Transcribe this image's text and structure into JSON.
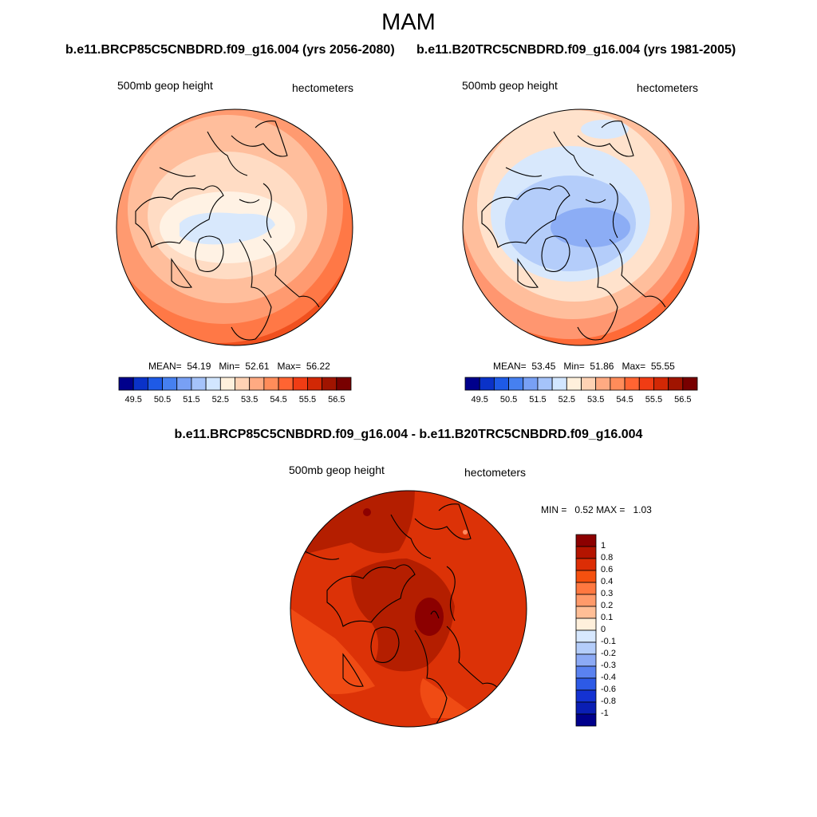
{
  "figure": {
    "season_title": "MAM",
    "panel_left": {
      "title": "b.e11.BRCP85C5CNBDRD.f09_g16.004 (yrs 2056-2080)",
      "variable": "500mb geop height",
      "units": "hectometers",
      "mean_label": "MEAN=",
      "mean": "54.19",
      "min_label": "Min=",
      "min": "52.61",
      "max_label": "Max=",
      "max": "56.22"
    },
    "panel_right": {
      "title": "b.e11.B20TRC5CNBDRD.f09_g16.004 (yrs 1981-2005)",
      "variable": "500mb geop height",
      "units": "hectometers",
      "mean_label": "MEAN=",
      "mean": "53.45",
      "min_label": "Min=",
      "min": "51.86",
      "max_label": "Max=",
      "max": "55.55"
    },
    "panel_diff": {
      "title": "b.e11.BRCP85C5CNBDRD.f09_g16.004 - b.e11.B20TRC5CNBDRD.f09_g16.004",
      "variable": "500mb geop height",
      "units": "hectometers",
      "min_label": "MIN =",
      "min": "0.52",
      "max_label": "MAX =",
      "max": "1.03"
    },
    "horizontal_colorbar": {
      "tick_labels": [
        "49.5",
        "50.5",
        "51.5",
        "52.5",
        "53.5",
        "54.5",
        "55.5",
        "56.5"
      ],
      "colors": [
        "#00008c",
        "#0a32c8",
        "#1e5ae6",
        "#4680f0",
        "#78a0f5",
        "#a5c3fa",
        "#d2e6ff",
        "#fff0dc",
        "#ffd2b4",
        "#ffaa82",
        "#ff8c5a",
        "#ff6432",
        "#f03c14",
        "#d22805",
        "#a01400",
        "#780000"
      ]
    },
    "vertical_colorbar": {
      "labels": [
        "1",
        "0.8",
        "0.6",
        "0.4",
        "0.3",
        "0.2",
        "0.1",
        "0",
        "-0.1",
        "-0.2",
        "-0.3",
        "-0.4",
        "-0.6",
        "-0.8",
        "-1"
      ],
      "colors": [
        "#8c0000",
        "#b41400",
        "#dc2d05",
        "#f5500f",
        "#ff7840",
        "#ff9a6a",
        "#ffbe96",
        "#fff0dc",
        "#d7e8ff",
        "#b4cdfa",
        "#8caaf5",
        "#5a82f0",
        "#2d5ae6",
        "#1432d2",
        "#0a1eb4",
        "#00008c"
      ]
    },
    "chart_data": {
      "type": "heatmap",
      "title": "MAM",
      "projection": "north polar stereographic",
      "variable": "500mb geop height",
      "units": "hectometers",
      "panels": [
        {
          "name": "RCP85 2056-2080",
          "mean": 54.19,
          "min": 52.61,
          "max": 56.22
        },
        {
          "name": "20TR 1981-2005",
          "mean": 53.45,
          "min": 51.86,
          "max": 55.55
        },
        {
          "name": "difference",
          "min": 0.52,
          "max": 1.03
        }
      ],
      "abs_colorbar_range": [
        49.5,
        56.5
      ],
      "diff_colorbar_range": [
        -1,
        1
      ]
    }
  }
}
